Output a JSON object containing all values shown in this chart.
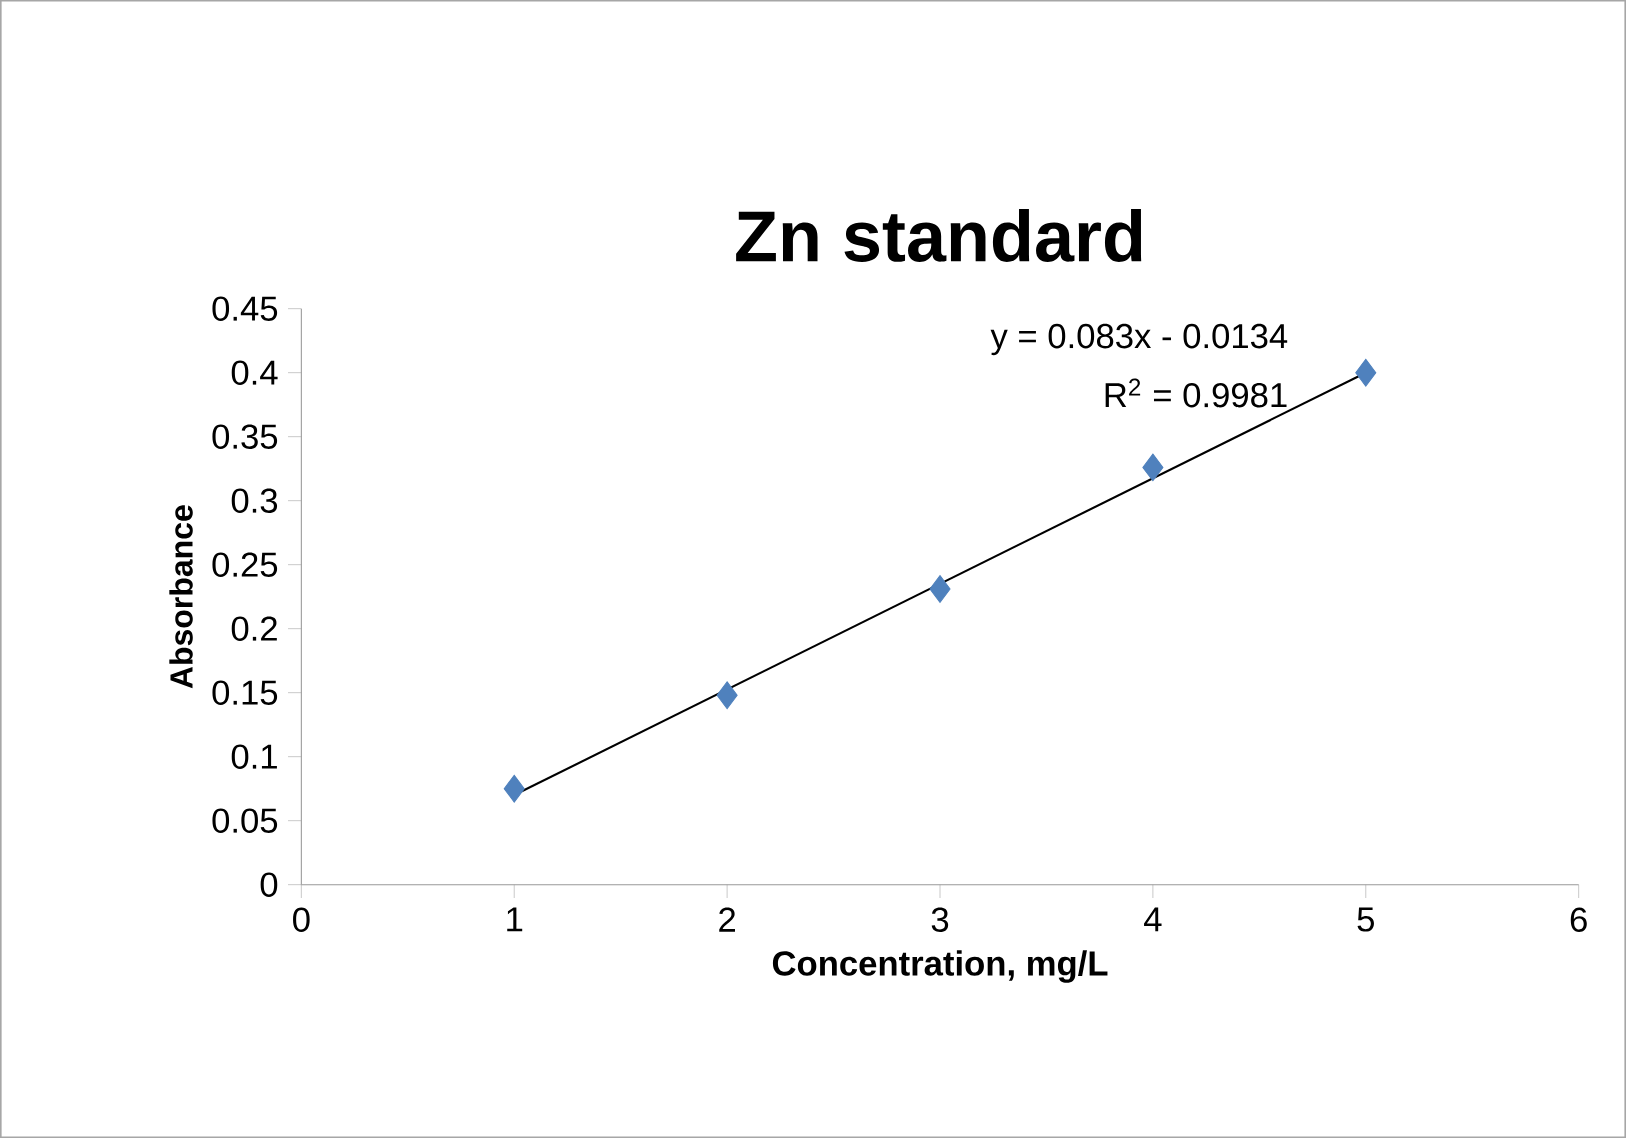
{
  "chart_data": {
    "type": "scatter",
    "title": "Zn standard",
    "xlabel": "Concentration, mg/L",
    "ylabel": "Absorbance",
    "annotations": [
      "y = 0.083x - 0.0134",
      "R$^{2}$ = 0.9981"
    ],
    "xlim": [
      0,
      6
    ],
    "ylim": [
      0,
      0.45
    ],
    "xticks": [
      0,
      1,
      2,
      3,
      4,
      5,
      6
    ],
    "yticks": [
      0,
      0.05,
      0.1,
      0.15,
      0.2,
      0.25,
      0.3,
      0.35,
      0.4,
      0.45
    ],
    "grid": false,
    "marker": "diamond",
    "series": [
      {
        "color": "#4f81bd",
        "x": [
          1,
          2,
          3,
          4,
          5
        ],
        "values": [
          0.075,
          0.148,
          0.231,
          0.326,
          0.4
        ]
      },
      {
        "type": "line",
        "color": "#000000",
        "marker": "none",
        "line_style": "solid",
        "x": [
          1,
          5
        ],
        "values": [
          0.07,
          0.4
        ]
      }
    ]
  }
}
